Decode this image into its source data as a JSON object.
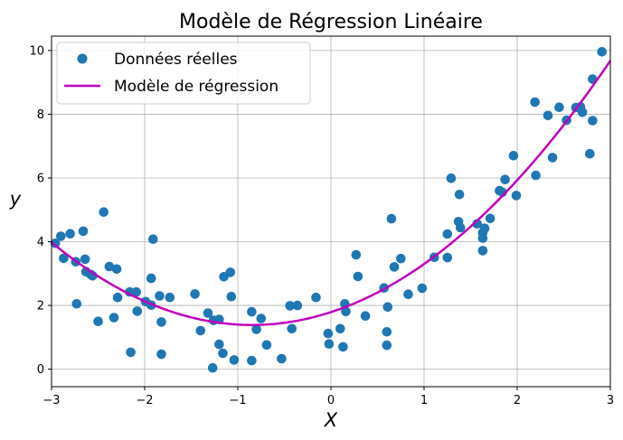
{
  "chart_data": {
    "type": "scatter",
    "title": "Modèle de Régression Linéaire",
    "xlabel": "X",
    "ylabel": "y",
    "xlim": [
      -3,
      3
    ],
    "ylim": [
      -0.55,
      10.45
    ],
    "grid": true,
    "legend_position": "top-left",
    "x_ticks": [
      -3,
      -2,
      -1,
      0,
      1,
      2,
      3
    ],
    "x_tick_labels": [
      "−3",
      "−2",
      "−1",
      "0",
      "1",
      "2",
      "3"
    ],
    "y_ticks": [
      0,
      2,
      4,
      6,
      8,
      10
    ],
    "y_tick_labels": [
      "0",
      "2",
      "4",
      "6",
      "8",
      "10"
    ],
    "series": [
      {
        "name": "Données réelles",
        "kind": "scatter",
        "color": "#1f77b4",
        "points": [
          [
            -2.96,
            3.95
          ],
          [
            -2.9,
            4.17
          ],
          [
            -2.87,
            3.48
          ],
          [
            -2.8,
            4.25
          ],
          [
            -2.74,
            3.37
          ],
          [
            -2.73,
            2.05
          ],
          [
            -2.66,
            4.33
          ],
          [
            -2.64,
            3.45
          ],
          [
            -2.63,
            3.06
          ],
          [
            -2.58,
            2.97
          ],
          [
            -2.56,
            2.93
          ],
          [
            -2.5,
            1.5
          ],
          [
            -2.44,
            4.93
          ],
          [
            -2.38,
            3.22
          ],
          [
            -2.33,
            1.62
          ],
          [
            -2.3,
            3.14
          ],
          [
            -2.29,
            2.25
          ],
          [
            -2.15,
            0.53
          ],
          [
            -2.16,
            2.42
          ],
          [
            -2.09,
            2.42
          ],
          [
            -2.08,
            1.82
          ],
          [
            -1.99,
            2.12
          ],
          [
            -1.93,
            2.01
          ],
          [
            -1.93,
            2.85
          ],
          [
            -1.91,
            4.08
          ],
          [
            -1.84,
            2.3
          ],
          [
            -1.82,
            1.48
          ],
          [
            -1.82,
            0.47
          ],
          [
            -1.73,
            2.25
          ],
          [
            -1.46,
            2.36
          ],
          [
            -1.4,
            1.21
          ],
          [
            -1.32,
            1.76
          ],
          [
            -1.27,
            0.04
          ],
          [
            -1.26,
            1.53
          ],
          [
            -1.2,
            1.56
          ],
          [
            -1.2,
            0.78
          ],
          [
            -1.16,
            0.5
          ],
          [
            -1.15,
            2.9
          ],
          [
            -1.08,
            3.04
          ],
          [
            -1.07,
            2.28
          ],
          [
            -1.04,
            0.29
          ],
          [
            -0.85,
            1.8
          ],
          [
            -0.85,
            0.27
          ],
          [
            -0.8,
            1.25
          ],
          [
            -0.75,
            1.59
          ],
          [
            -0.69,
            0.76
          ],
          [
            -0.53,
            0.33
          ],
          [
            -0.44,
            1.99
          ],
          [
            -0.42,
            1.27
          ],
          [
            -0.36,
            2.0
          ],
          [
            -0.16,
            2.25
          ],
          [
            -0.03,
            1.12
          ],
          [
            -0.02,
            0.79
          ],
          [
            0.1,
            1.27
          ],
          [
            0.13,
            0.7
          ],
          [
            0.15,
            2.05
          ],
          [
            0.16,
            1.81
          ],
          [
            0.27,
            3.59
          ],
          [
            0.29,
            2.91
          ],
          [
            0.37,
            1.67
          ],
          [
            0.57,
            2.55
          ],
          [
            0.6,
            1.17
          ],
          [
            0.6,
            0.75
          ],
          [
            0.61,
            1.95
          ],
          [
            0.65,
            4.72
          ],
          [
            0.68,
            3.21
          ],
          [
            0.75,
            3.47
          ],
          [
            0.83,
            2.35
          ],
          [
            0.98,
            2.54
          ],
          [
            1.11,
            3.51
          ],
          [
            1.25,
            4.24
          ],
          [
            1.25,
            3.5
          ],
          [
            1.29,
            5.99
          ],
          [
            1.37,
            4.63
          ],
          [
            1.38,
            5.48
          ],
          [
            1.39,
            4.44
          ],
          [
            1.57,
            4.56
          ],
          [
            1.63,
            4.28
          ],
          [
            1.63,
            4.11
          ],
          [
            1.63,
            3.72
          ],
          [
            1.65,
            4.42
          ],
          [
            1.71,
            4.73
          ],
          [
            1.81,
            5.6
          ],
          [
            1.84,
            5.55
          ],
          [
            1.87,
            5.95
          ],
          [
            1.96,
            6.7
          ],
          [
            1.99,
            5.45
          ],
          [
            2.19,
            8.38
          ],
          [
            2.2,
            6.08
          ],
          [
            2.33,
            7.96
          ],
          [
            2.38,
            6.64
          ],
          [
            2.45,
            8.22
          ],
          [
            2.53,
            7.81
          ],
          [
            2.63,
            8.21
          ],
          [
            2.68,
            8.23
          ],
          [
            2.7,
            8.06
          ],
          [
            2.78,
            6.76
          ],
          [
            2.81,
            9.1
          ],
          [
            2.81,
            7.8
          ],
          [
            2.91,
            9.96
          ]
        ]
      },
      {
        "name": "Modèle de régression",
        "kind": "line",
        "color": "#bf00bf",
        "curve": {
          "a": 0.56,
          "b": 0.95,
          "c": 1.79
        }
      }
    ]
  }
}
